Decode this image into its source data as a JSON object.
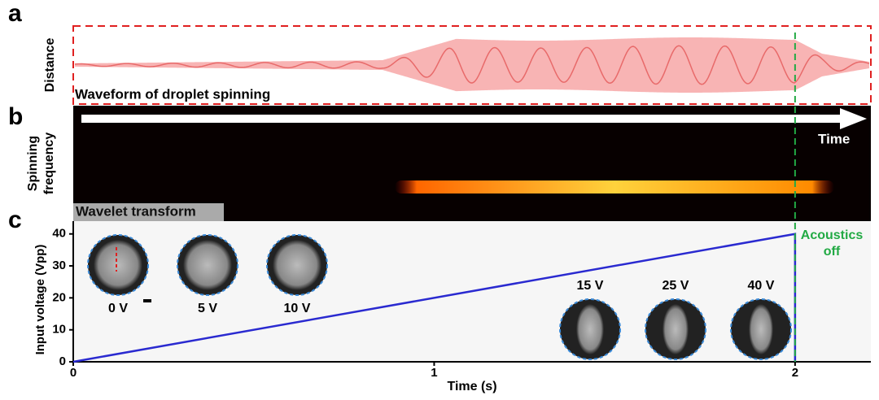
{
  "panel_labels": [
    "a",
    "b",
    "c"
  ],
  "waveform": {
    "ylabel": "Distance",
    "caption": "Waveform of droplet spinning"
  },
  "wavelet": {
    "ylabel": [
      "Spinning",
      "frequency"
    ],
    "arrow_label": "Time",
    "caption": "Wavelet transform"
  },
  "chart_data": {
    "type": "line",
    "xlabel": "Time (s)",
    "ylabel": "Input voltage (Vpp)",
    "x": [
      0,
      2,
      2
    ],
    "values": [
      0,
      40,
      0
    ],
    "color": "#2a2ad0",
    "xlim": [
      0,
      2.21
    ],
    "xticks": [
      0,
      1,
      2
    ],
    "ylim": [
      0,
      44
    ],
    "yticks": [
      0,
      10,
      20,
      30,
      40
    ],
    "annotation": {
      "text": [
        "Acoustics",
        "off"
      ],
      "x": 2,
      "color": "#22aa44"
    },
    "insets": [
      "0 V",
      "5 V",
      "10 V",
      "15 V",
      "25 V",
      "40 V"
    ]
  }
}
